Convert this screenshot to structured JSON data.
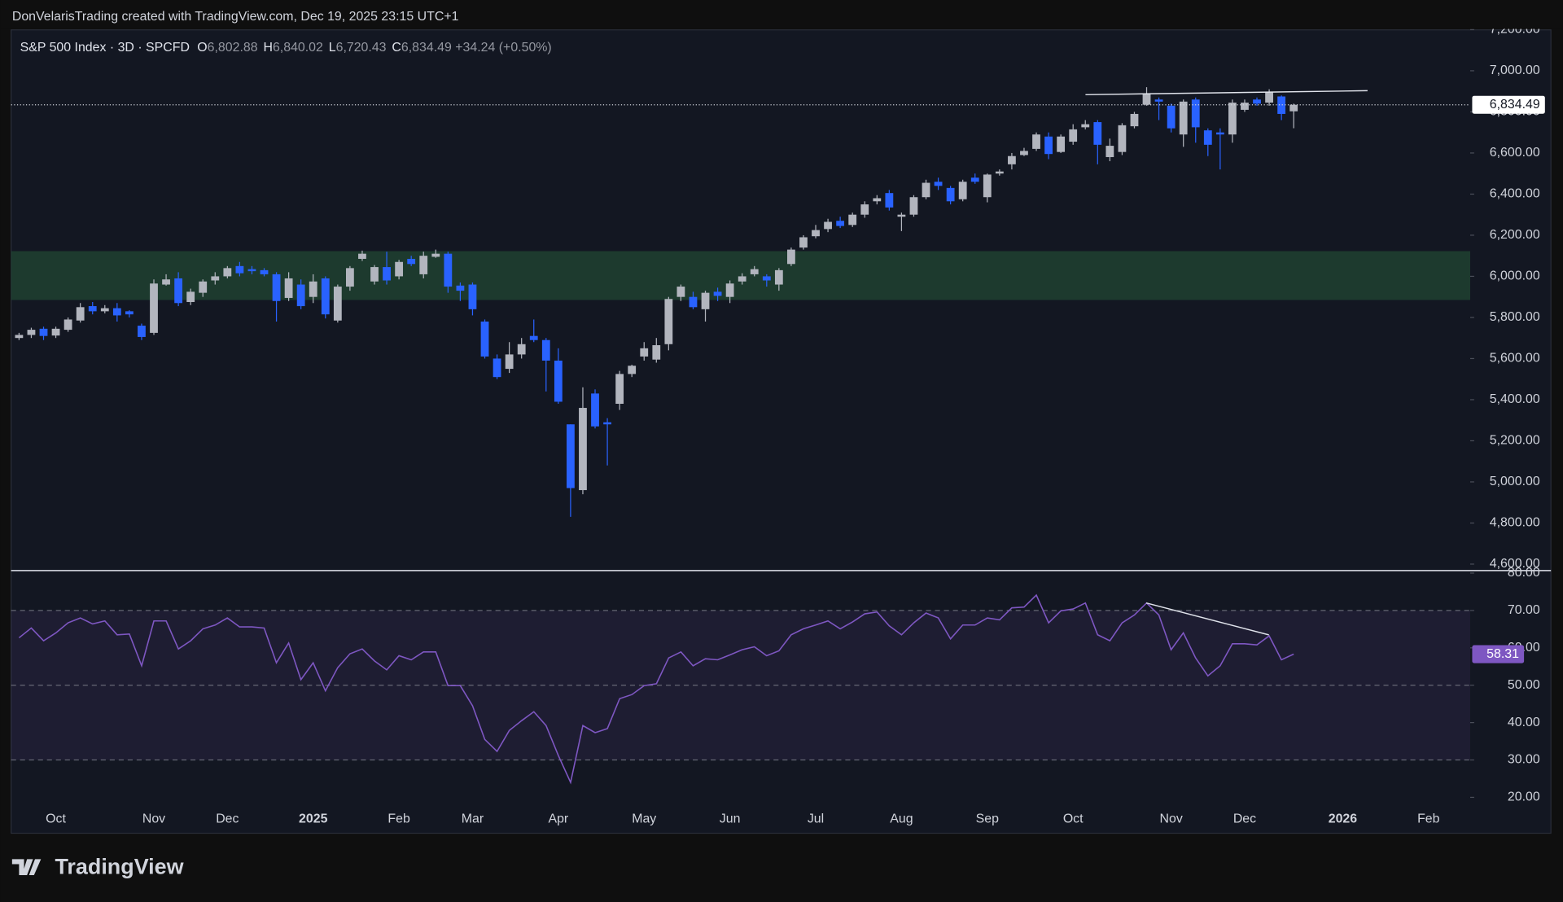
{
  "header": {
    "attribution": "DonVelarisTrading created with TradingView.com, Dec 19, 2025 23:15 UTC+1"
  },
  "legend": {
    "symbol": "S&P 500 Index · 3D · SPCFD",
    "open_label": "O",
    "open": "6,802.88",
    "high_label": "H",
    "high": "6,840.02",
    "low_label": "L",
    "low": "6,720.43",
    "close_label": "C",
    "close": "6,834.49",
    "change": "+34.24 (+0.50%)"
  },
  "chart_data": [
    {
      "type": "candlestick",
      "up_color": "#b2b5be",
      "down_color": "#2962ff",
      "xlim": [
        -0.65,
        118.4
      ],
      "ylim": [
        4600,
        7200
      ],
      "yticks": [
        {
          "value": 4600,
          "label": "4,600.00"
        },
        {
          "value": 4800,
          "label": "4,800.00"
        },
        {
          "value": 5000,
          "label": "5,000.00"
        },
        {
          "value": 5200,
          "label": "5,200.00"
        },
        {
          "value": 5400,
          "label": "5,400.00"
        },
        {
          "value": 5600,
          "label": "5,600.00"
        },
        {
          "value": 5800,
          "label": "5,800.00"
        },
        {
          "value": 6000,
          "label": "6,000.00"
        },
        {
          "value": 6200,
          "label": "6,200.00"
        },
        {
          "value": 6400,
          "label": "6,400.00"
        },
        {
          "value": 6600,
          "label": "6,600.00"
        },
        {
          "value": 6800,
          "label": "6,800.00"
        },
        {
          "value": 7000,
          "label": "7,000.00"
        },
        {
          "value": 7200,
          "label": "7,200.00"
        }
      ],
      "open": [
        5700,
        5715,
        5745,
        5712,
        5740,
        5785,
        5855,
        5830,
        5845,
        5830,
        5760,
        5725,
        5960,
        5990,
        5875,
        5920,
        5980,
        6000,
        6050,
        6035,
        6030,
        6010,
        5895,
        5960,
        5900,
        5990,
        5785,
        5950,
        6085,
        5975,
        6045,
        6000,
        6085,
        6010,
        6095,
        6110,
        5955,
        5960,
        5780,
        5600,
        5550,
        5620,
        5710,
        5690,
        5590,
        5280,
        4960,
        5430,
        5290,
        5380,
        5525,
        5610,
        5595,
        5670,
        5900,
        5900,
        5840,
        5925,
        5900,
        5975,
        6010,
        6000,
        5960,
        6060,
        6140,
        6195,
        6230,
        6270,
        6250,
        6300,
        6365,
        6405,
        6290,
        6300,
        6385,
        6460,
        6430,
        6375,
        6480,
        6385,
        6500,
        6545,
        6590,
        6620,
        6680,
        6605,
        6655,
        6725,
        6750,
        6580,
        6605,
        6730,
        6835,
        6860,
        6830,
        6690,
        6860,
        6710,
        6700,
        6690,
        6810,
        6860,
        6845,
        6875,
        6802.88
      ],
      "high": [
        5725,
        5750,
        5755,
        5755,
        5800,
        5870,
        5875,
        5860,
        5870,
        5835,
        5770,
        5985,
        6010,
        6020,
        5940,
        5985,
        6020,
        6050,
        6070,
        6050,
        6040,
        6020,
        6020,
        5985,
        6010,
        6000,
        5960,
        6050,
        6125,
        6055,
        6120,
        6080,
        6100,
        6120,
        6130,
        6120,
        5970,
        5970,
        5790,
        5620,
        5680,
        5700,
        5790,
        5700,
        5650,
        5280,
        5460,
        5450,
        5310,
        5540,
        5570,
        5680,
        5700,
        5900,
        5960,
        5925,
        5930,
        5945,
        5980,
        6015,
        6050,
        6010,
        6040,
        6140,
        6200,
        6250,
        6280,
        6290,
        6310,
        6365,
        6395,
        6420,
        6310,
        6395,
        6470,
        6480,
        6440,
        6470,
        6500,
        6500,
        6520,
        6600,
        6625,
        6700,
        6700,
        6690,
        6740,
        6760,
        6760,
        6670,
        6745,
        6800,
        6920,
        6870,
        6840,
        6860,
        6870,
        6720,
        6720,
        6860,
        6860,
        6870,
        6910,
        6880,
        6840.02
      ],
      "low": [
        5690,
        5700,
        5690,
        5700,
        5730,
        5775,
        5815,
        5820,
        5780,
        5800,
        5690,
        5715,
        5955,
        5855,
        5860,
        5900,
        5960,
        5990,
        6000,
        6010,
        6000,
        5780,
        5880,
        5840,
        5870,
        5795,
        5775,
        5930,
        6075,
        5960,
        5960,
        5985,
        6050,
        5990,
        6090,
        5920,
        5880,
        5810,
        5600,
        5500,
        5530,
        5600,
        5680,
        5440,
        5380,
        4830,
        4940,
        5260,
        5080,
        5350,
        5510,
        5590,
        5580,
        5640,
        5880,
        5840,
        5780,
        5880,
        5870,
        5960,
        6000,
        5950,
        5930,
        6050,
        6130,
        6185,
        6215,
        6235,
        6240,
        6285,
        6350,
        6320,
        6220,
        6290,
        6375,
        6420,
        6350,
        6365,
        6450,
        6360,
        6490,
        6520,
        6585,
        6610,
        6570,
        6600,
        6640,
        6715,
        6545,
        6560,
        6590,
        6720,
        6830,
        6760,
        6700,
        6630,
        6650,
        6585,
        6520,
        6650,
        6800,
        6830,
        6830,
        6760,
        6720.43
      ],
      "close": [
        5715,
        5740,
        5710,
        5745,
        5790,
        5850,
        5830,
        5845,
        5810,
        5815,
        5705,
        5965,
        5985,
        5870,
        5925,
        5975,
        6000,
        6040,
        6015,
        6025,
        6010,
        5880,
        5990,
        5855,
        5975,
        5815,
        5950,
        6040,
        6110,
        6045,
        5980,
        6070,
        6060,
        6100,
        6110,
        5950,
        5930,
        5840,
        5610,
        5510,
        5620,
        5670,
        5690,
        5590,
        5390,
        4970,
        5360,
        5270,
        5280,
        5525,
        5565,
        5650,
        5665,
        5890,
        5950,
        5850,
        5920,
        5905,
        5965,
        6000,
        6035,
        5980,
        6030,
        6130,
        6190,
        6225,
        6265,
        6245,
        6300,
        6350,
        6380,
        6335,
        6300,
        6385,
        6455,
        6440,
        6365,
        6460,
        6460,
        6495,
        6510,
        6585,
        6610,
        6690,
        6595,
        6680,
        6715,
        6740,
        6640,
        6635,
        6735,
        6790,
        6890,
        6850,
        6720,
        6850,
        6725,
        6640,
        6690,
        6845,
        6845,
        6840,
        6895,
        6790,
        6834.49
      ],
      "last_close_label": "6,834.49"
    },
    {
      "type": "line",
      "color": "#7e57c2",
      "xlim": [
        -0.65,
        118.4
      ],
      "ylim": [
        20,
        80
      ],
      "yticks": [
        {
          "value": 20,
          "label": "20.00"
        },
        {
          "value": 30,
          "label": "30.00"
        },
        {
          "value": 40,
          "label": "40.00"
        },
        {
          "value": 50,
          "label": "50.00"
        },
        {
          "value": 60,
          "label": "60.00"
        },
        {
          "value": 70,
          "label": "70.00"
        },
        {
          "value": 80,
          "label": "80.00"
        }
      ],
      "bands": [
        30,
        50,
        70
      ],
      "xticks": [
        {
          "value": 3,
          "label": "Oct"
        },
        {
          "value": 11,
          "label": "Nov"
        },
        {
          "value": 17,
          "label": "Dec"
        },
        {
          "value": 24,
          "label": "2025"
        },
        {
          "value": 31,
          "label": "Feb"
        },
        {
          "value": 37,
          "label": "Mar"
        },
        {
          "value": 44,
          "label": "Apr"
        },
        {
          "value": 51,
          "label": "May"
        },
        {
          "value": 58,
          "label": "Jun"
        },
        {
          "value": 65,
          "label": "Jul"
        },
        {
          "value": 72,
          "label": "Aug"
        },
        {
          "value": 79,
          "label": "Sep"
        },
        {
          "value": 86,
          "label": "Oct"
        },
        {
          "value": 94,
          "label": "Nov"
        },
        {
          "value": 100,
          "label": "Dec"
        },
        {
          "value": 108,
          "label": "2026"
        },
        {
          "value": 115,
          "label": "Feb"
        }
      ],
      "values": [
        62.7,
        65.3,
        61.9,
        64,
        66.7,
        68,
        66.4,
        67.2,
        63.5,
        63.7,
        55.2,
        67.2,
        67.2,
        59.7,
        61.9,
        65.1,
        66.1,
        68,
        65.6,
        65.6,
        65.3,
        56,
        61.3,
        51.5,
        56,
        48.5,
        54.7,
        58.4,
        59.7,
        56.5,
        54.1,
        57.9,
        56.8,
        58.9,
        58.9,
        49.9,
        49.9,
        44.5,
        35.5,
        32.3,
        37.9,
        40.5,
        42.9,
        39.2,
        31.2,
        24,
        39.2,
        37.3,
        38.4,
        46.4,
        47.5,
        49.9,
        50.4,
        57.3,
        58.9,
        55.2,
        57.1,
        56.8,
        58.1,
        59.5,
        60.3,
        57.9,
        59.2,
        63.5,
        65.1,
        66.1,
        67.2,
        65.1,
        66.9,
        69.1,
        69.6,
        65.9,
        63.5,
        66.7,
        69.3,
        68,
        62.4,
        66.1,
        66.1,
        68,
        67.5,
        70.7,
        70.9,
        74.1,
        66.7,
        69.9,
        70.4,
        72,
        63.5,
        61.9,
        66.7,
        68.8,
        72,
        68.8,
        59.5,
        64,
        57.3,
        52.5,
        55.2,
        61.1,
        61.1,
        60.8,
        63.2,
        56.8,
        58.31
      ]
    }
  ],
  "footer": {
    "brand": "TradingView"
  }
}
